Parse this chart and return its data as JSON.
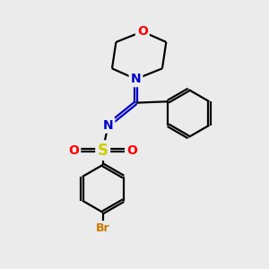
{
  "background_color": "#ebebeb",
  "atom_colors": {
    "C": "#000000",
    "N": "#0000cc",
    "O": "#ff0000",
    "S": "#cccc00",
    "Br": "#cc7700"
  },
  "bond_color": "#000000",
  "bond_width": 1.6,
  "font_size_atoms": 10,
  "font_size_br": 9
}
